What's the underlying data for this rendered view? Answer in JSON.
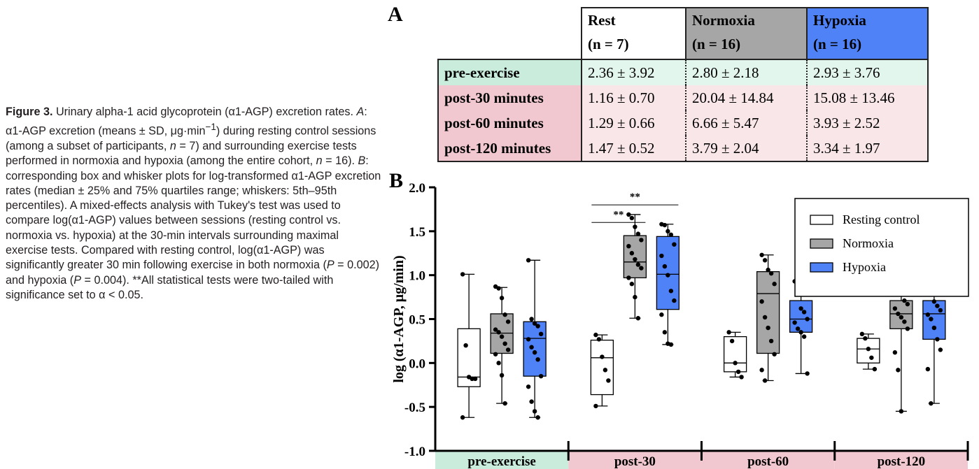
{
  "caption": {
    "fig_label": "Figure 3.",
    "s1": " Urinary alpha-1 acid glycoprotein (α1-AGP) excretion rates. ",
    "a_label": "A",
    "s2": ": α1-AGP excretion (means ± SD, μg·min",
    "s2_sup": "−1",
    "s3": ") during resting control sessions (among a subset of participants, ",
    "n1_var": "n",
    "s4": " = 7) and surrounding exercise tests performed in normoxia and hypoxia (among the entire cohort, ",
    "n2_var": "n",
    "s5": " = 16). ",
    "b_label": "B",
    "s6": ": corresponding box and whisker plots for log-transformed α1-AGP excretion rates (median ± 25% and 75% quartiles range; whiskers: 5th–95th percentiles). A mixed-effects analysis with Tukey's test was used to compare log(α1-AGP) values between sessions (resting control vs. normoxia vs. hypoxia) at the 30-min intervals surrounding maximal exercise tests. Compared with resting control, log(α1-AGP) was significantly greater 30 min following exercise in both normoxia (",
    "p1_var": "P",
    "s7": " = 0.002) and hypoxia (",
    "p2_var": "P",
    "s8": " = 0.004). **All statistical tests were two-tailed with significance set to α < 0.05."
  },
  "panel_a": {
    "letter": "A",
    "headers": [
      {
        "line1": "Rest",
        "line2": "(n = 7)"
      },
      {
        "line1": "Normoxia",
        "line2": "(n = 16)"
      },
      {
        "line1": "Hypoxia",
        "line2": "(n = 16)"
      }
    ],
    "rows": [
      {
        "label": "pre-exercise",
        "values": [
          "2.36 ± 3.92",
          "2.80 ± 2.18",
          "2.93 ± 3.76"
        ]
      },
      {
        "label": "post-30 minutes",
        "values": [
          "1.16 ± 0.70",
          "20.04 ± 14.84",
          "15.08 ± 13.46"
        ]
      },
      {
        "label": "post-60 minutes",
        "values": [
          "1.29 ± 0.66",
          "6.66 ± 5.47",
          "3.93 ± 2.52"
        ]
      },
      {
        "label": "post-120 minutes",
        "values": [
          "1.47 ± 0.52",
          "3.79 ± 2.04",
          "3.34 ± 1.97"
        ]
      }
    ],
    "colors": {
      "rest_header": "#ffffff",
      "normoxia_header": "#a6a6a6",
      "hypoxia_header": "#4f81f7",
      "pre_row": "#e2f6ee",
      "pre_label": "#c9ecdc",
      "post_row": "#f9e6e8",
      "post_label": "#f1c8cf"
    }
  },
  "chart_data": {
    "type": "box",
    "letter": "B",
    "ylabel": "log (α1-AGP, μg/min)",
    "ylim": [
      -1.0,
      2.0
    ],
    "yticks": [
      2.0,
      1.5,
      1.0,
      0.5,
      0.0,
      -0.5,
      -1.0
    ],
    "ytick_labels": [
      "2.0",
      "1.5",
      "1.0",
      "0.5",
      "0.0",
      "-0.5",
      "-1.0"
    ],
    "categories": [
      "pre-exercise",
      "post-30",
      "post-60",
      "post-120"
    ],
    "category_colors": [
      "#c9ecdc",
      "#f1c8cf",
      "#f1c8cf",
      "#f1c8cf"
    ],
    "legend_position": "top-right",
    "series": [
      {
        "name": "Resting control",
        "color": "#ffffff",
        "boxes": [
          {
            "q1": -0.27,
            "median": -0.16,
            "q3": 0.39,
            "whislo": -0.62,
            "whishi": 1.01,
            "points": [
              1.01,
              0.2,
              -0.16,
              -0.18,
              -0.18,
              -0.62
            ]
          },
          {
            "q1": -0.36,
            "median": 0.06,
            "q3": 0.26,
            "whislo": -0.49,
            "whishi": 0.32,
            "points": [
              0.32,
              0.27,
              0.07,
              -0.08,
              -0.2,
              -0.49
            ]
          },
          {
            "q1": -0.1,
            "median": 0.0,
            "q3": 0.3,
            "whislo": -0.16,
            "whishi": 0.35,
            "points": [
              0.35,
              0.25,
              0.0,
              -0.1,
              -0.16
            ]
          },
          {
            "q1": 0.0,
            "median": 0.16,
            "q3": 0.28,
            "whislo": -0.07,
            "whishi": 0.33,
            "points": [
              0.33,
              0.28,
              0.16,
              0.06,
              -0.07
            ]
          }
        ]
      },
      {
        "name": "Normoxia",
        "color": "#a6a6a6",
        "boxes": [
          {
            "q1": 0.11,
            "median": 0.34,
            "q3": 0.56,
            "whislo": -0.46,
            "whishi": 0.86,
            "points": [
              0.87,
              0.85,
              0.74,
              0.55,
              0.47,
              0.38,
              0.35,
              0.3,
              0.22,
              0.15,
              0.1,
              0.0,
              -0.14,
              -0.46
            ]
          },
          {
            "q1": 0.97,
            "median": 1.15,
            "q3": 1.45,
            "whislo": 0.51,
            "whishi": 1.69,
            "points": [
              1.69,
              1.65,
              1.55,
              1.47,
              1.4,
              1.33,
              1.25,
              1.18,
              1.12,
              1.08,
              0.97,
              0.9,
              0.75,
              0.51
            ]
          },
          {
            "q1": 0.11,
            "median": 0.79,
            "q3": 1.04,
            "whislo": -0.2,
            "whishi": 1.23,
            "points": [
              1.23,
              1.17,
              1.06,
              1.02,
              0.9,
              0.7,
              0.52,
              0.4,
              0.25,
              0.1,
              -0.08,
              -0.2
            ]
          },
          {
            "q1": 0.39,
            "median": 0.56,
            "q3": 0.71,
            "whislo": -0.55,
            "whishi": 0.86,
            "points": [
              0.86,
              0.84,
              0.8,
              0.71,
              0.67,
              0.62,
              0.56,
              0.52,
              0.47,
              0.39,
              0.12,
              -0.08,
              -0.55
            ]
          }
        ]
      },
      {
        "name": "Hypoxia",
        "color": "#4f81f7",
        "boxes": [
          {
            "q1": -0.15,
            "median": 0.28,
            "q3": 0.47,
            "whislo": -0.62,
            "whishi": 1.17,
            "points": [
              1.17,
              0.5,
              0.45,
              0.42,
              0.33,
              0.27,
              0.18,
              0.12,
              0.04,
              -0.15,
              -0.27,
              -0.44,
              -0.55,
              -0.62
            ]
          },
          {
            "q1": 0.61,
            "median": 1.01,
            "q3": 1.44,
            "whislo": 0.21,
            "whishi": 1.58,
            "points": [
              1.58,
              1.57,
              1.5,
              1.46,
              1.35,
              1.22,
              1.1,
              1.0,
              0.82,
              0.71,
              0.55,
              0.35,
              0.22,
              0.21
            ]
          },
          {
            "q1": 0.35,
            "median": 0.5,
            "q3": 0.71,
            "whislo": -0.12,
            "whishi": 0.93,
            "points": [
              0.93,
              0.82,
              0.62,
              0.58,
              0.5,
              0.46,
              0.39,
              0.35,
              0.3,
              -0.12
            ]
          },
          {
            "q1": 0.27,
            "median": 0.56,
            "q3": 0.71,
            "whislo": -0.46,
            "whishi": 0.85,
            "points": [
              0.85,
              0.78,
              0.7,
              0.65,
              0.6,
              0.55,
              0.5,
              0.4,
              0.27,
              0.15,
              -0.07,
              -0.46
            ]
          }
        ]
      }
    ],
    "annotations": [
      {
        "text": "**",
        "from_series": 0,
        "to_series": 2,
        "category": "post-30"
      },
      {
        "text": "**",
        "from_series": 0,
        "to_series": 1,
        "category": "post-30"
      }
    ]
  }
}
